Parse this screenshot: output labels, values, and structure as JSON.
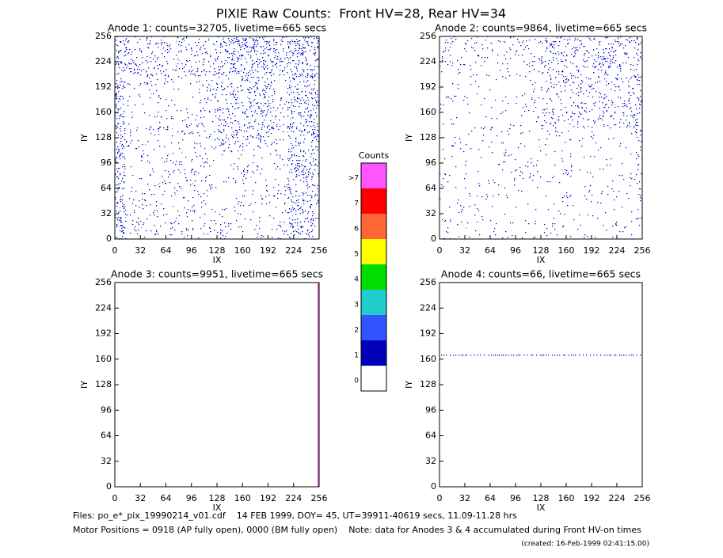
{
  "title": "PIXIE Raw Counts:  Front HV=28, Rear HV=34",
  "chart_data": [
    {
      "type": "heatmap",
      "title": "Anode 1: counts=32705, livetime=665 secs",
      "xlabel": "IX",
      "ylabel": "IY",
      "xlim": [
        0,
        256
      ],
      "ylim": [
        0,
        256
      ],
      "xticks": [
        0,
        32,
        64,
        96,
        128,
        160,
        192,
        224,
        256
      ],
      "yticks": [
        0,
        32,
        64,
        96,
        128,
        160,
        192,
        224,
        256
      ]
    },
    {
      "type": "heatmap",
      "title": "Anode 2: counts=9864, livetime=665 secs",
      "xlabel": "IX",
      "ylabel": "IY",
      "xlim": [
        0,
        256
      ],
      "ylim": [
        0,
        256
      ],
      "xticks": [
        0,
        32,
        64,
        96,
        128,
        160,
        192,
        224,
        256
      ],
      "yticks": [
        0,
        32,
        64,
        96,
        128,
        160,
        192,
        224,
        256
      ]
    },
    {
      "type": "heatmap",
      "title": "Anode 3: counts=9951, livetime=665 secs",
      "xlabel": "IX",
      "ylabel": "IY",
      "xlim": [
        0,
        256
      ],
      "ylim": [
        0,
        256
      ],
      "xticks": [
        0,
        32,
        64,
        96,
        128,
        160,
        192,
        224,
        256
      ],
      "yticks": [
        0,
        32,
        64,
        96,
        128,
        160,
        192,
        224,
        256
      ]
    },
    {
      "type": "heatmap",
      "title": "Anode 4: counts=66, livetime=665 secs",
      "xlabel": "IX",
      "ylabel": "IY",
      "xlim": [
        0,
        256
      ],
      "ylim": [
        0,
        256
      ],
      "xticks": [
        0,
        32,
        64,
        96,
        128,
        160,
        192,
        224,
        256
      ],
      "yticks": [
        0,
        32,
        64,
        96,
        128,
        160,
        192,
        224,
        256
      ]
    }
  ],
  "colorbar": {
    "title": "Counts",
    "labels": [
      ">7",
      "7",
      "6",
      "5",
      "4",
      "3",
      "2",
      "1",
      "0"
    ],
    "colors": [
      "#ff55ff",
      "#ff0000",
      "#ff6633",
      "#ffff00",
      "#00dd00",
      "#22cccc",
      "#3355ff",
      "#0000bb",
      "#ffffff"
    ]
  },
  "footer": {
    "files": "Files: po_e*_pix_19990214_v01.cdf    14 FEB 1999, DOY= 45, UT=39911-40619 secs, 11.09-11.28 hrs",
    "motor": "Motor Positions = 0918 (AP fully open), 0000 (BM fully open)    Note: data for Anodes 3 & 4 accumulated during Front HV-on times",
    "created": "(created: 16-Feb-1999 02:41:15.00)"
  }
}
